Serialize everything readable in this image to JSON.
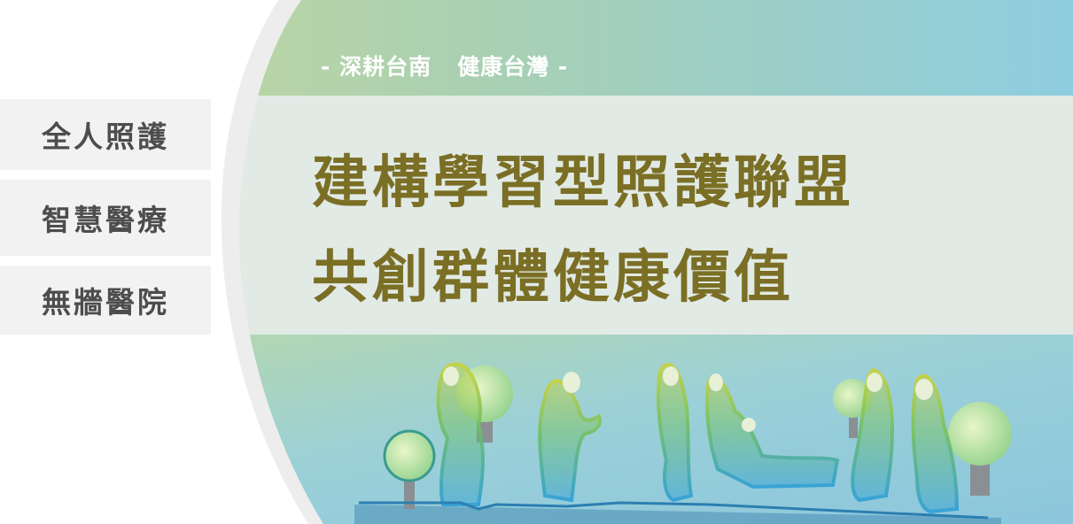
{
  "tags": {
    "item1": "全人照護",
    "item2": "智慧醫療",
    "item3": "無牆醫院"
  },
  "banner": {
    "subtitle": "- 深耕台南   健康台灣 -",
    "headline_line1": "建構學習型照護聯盟",
    "headline_line2": "共創群體健康價值"
  },
  "colors": {
    "headline": "#7a6f24",
    "tag_text": "#4d4d4d",
    "tag_bg": "#f2f2f2"
  }
}
